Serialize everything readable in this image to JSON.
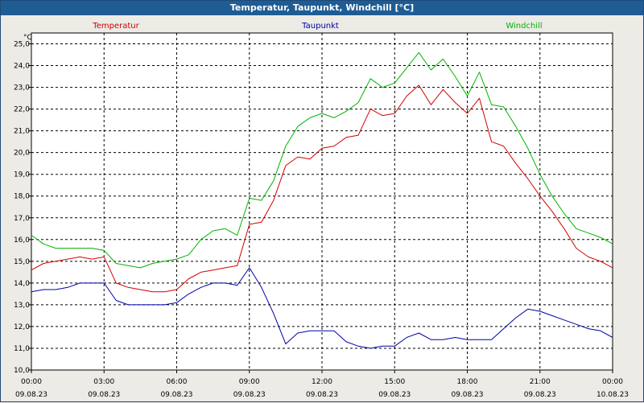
{
  "window": {
    "title": "Temperatur, Taupunkt, Windchill [°C]"
  },
  "chart_data": {
    "type": "line",
    "title": "Temperatur, Taupunkt, Windchill [°C]",
    "ylabel": "°C",
    "ylim": [
      10.0,
      25.5
    ],
    "y_ticks": [
      "10,0",
      "11,0",
      "12,0",
      "13,0",
      "14,0",
      "15,0",
      "16,0",
      "17,0",
      "18,0",
      "19,0",
      "20,0",
      "21,0",
      "22,0",
      "23,0",
      "24,0",
      "25,0"
    ],
    "x_range_hours": [
      0,
      24
    ],
    "x_ticks": [
      {
        "time": "00:00",
        "date": "09.08.23"
      },
      {
        "time": "03:00",
        "date": "09.08.23"
      },
      {
        "time": "06:00",
        "date": "09.08.23"
      },
      {
        "time": "09:00",
        "date": "09.08.23"
      },
      {
        "time": "12:00",
        "date": "09.08.23"
      },
      {
        "time": "15:00",
        "date": "09.08.23"
      },
      {
        "time": "18:00",
        "date": "09.08.23"
      },
      {
        "time": "21:00",
        "date": "09.08.23"
      },
      {
        "time": "00:00",
        "date": "10.08.23"
      }
    ],
    "grid": true,
    "legend": [
      "Temperatur",
      "Taupunkt",
      "Windchill"
    ],
    "x": [
      0,
      0.5,
      1,
      1.5,
      2,
      2.5,
      3,
      3.5,
      4,
      4.5,
      5,
      5.5,
      6,
      6.5,
      7,
      7.5,
      8,
      8.5,
      9,
      9.5,
      10,
      10.5,
      11,
      11.5,
      12,
      12.5,
      13,
      13.5,
      14,
      14.5,
      15,
      15.5,
      16,
      16.5,
      17,
      17.5,
      18,
      18.5,
      19,
      19.5,
      20,
      20.5,
      21,
      21.5,
      22,
      22.5,
      23,
      23.5,
      24
    ],
    "series": [
      {
        "name": "Temperatur",
        "color": "#d40000",
        "values": [
          14.6,
          14.9,
          15.0,
          15.1,
          15.2,
          15.1,
          15.2,
          14.0,
          13.8,
          13.7,
          13.6,
          13.6,
          13.7,
          14.2,
          14.5,
          14.6,
          14.7,
          14.8,
          16.7,
          16.8,
          17.8,
          19.4,
          19.8,
          19.7,
          20.2,
          20.3,
          20.7,
          20.8,
          22.0,
          21.7,
          21.8,
          22.6,
          23.1,
          22.2,
          22.9,
          22.3,
          21.8,
          22.5,
          20.5,
          20.3,
          19.5,
          18.8,
          18.0,
          17.3,
          16.5,
          15.6,
          15.2,
          15.0,
          14.7
        ]
      },
      {
        "name": "Taupunkt",
        "color": "#0000a8",
        "values": [
          13.6,
          13.7,
          13.7,
          13.8,
          14.0,
          14.0,
          14.0,
          13.2,
          13.0,
          13.0,
          13.0,
          13.0,
          13.1,
          13.5,
          13.8,
          14.0,
          14.0,
          13.9,
          14.7,
          13.8,
          12.6,
          11.2,
          11.7,
          11.8,
          11.8,
          11.8,
          11.3,
          11.1,
          11.0,
          11.1,
          11.1,
          11.5,
          11.7,
          11.4,
          11.4,
          11.5,
          11.4,
          11.4,
          11.4,
          11.9,
          12.4,
          12.8,
          12.7,
          12.5,
          12.3,
          12.1,
          11.9,
          11.8,
          11.5
        ]
      },
      {
        "name": "Windchill",
        "color": "#00b400",
        "values": [
          16.2,
          15.8,
          15.6,
          15.6,
          15.6,
          15.6,
          15.5,
          14.9,
          14.8,
          14.7,
          14.9,
          15.0,
          15.1,
          15.3,
          16.0,
          16.4,
          16.5,
          16.2,
          17.9,
          17.8,
          18.7,
          20.3,
          21.2,
          21.6,
          21.8,
          21.6,
          21.9,
          22.3,
          23.4,
          23.0,
          23.2,
          23.9,
          24.6,
          23.8,
          24.3,
          23.5,
          22.6,
          23.7,
          22.2,
          22.1,
          21.2,
          20.2,
          19.0,
          18.0,
          17.2,
          16.5,
          16.3,
          16.1,
          15.8
        ]
      }
    ]
  }
}
